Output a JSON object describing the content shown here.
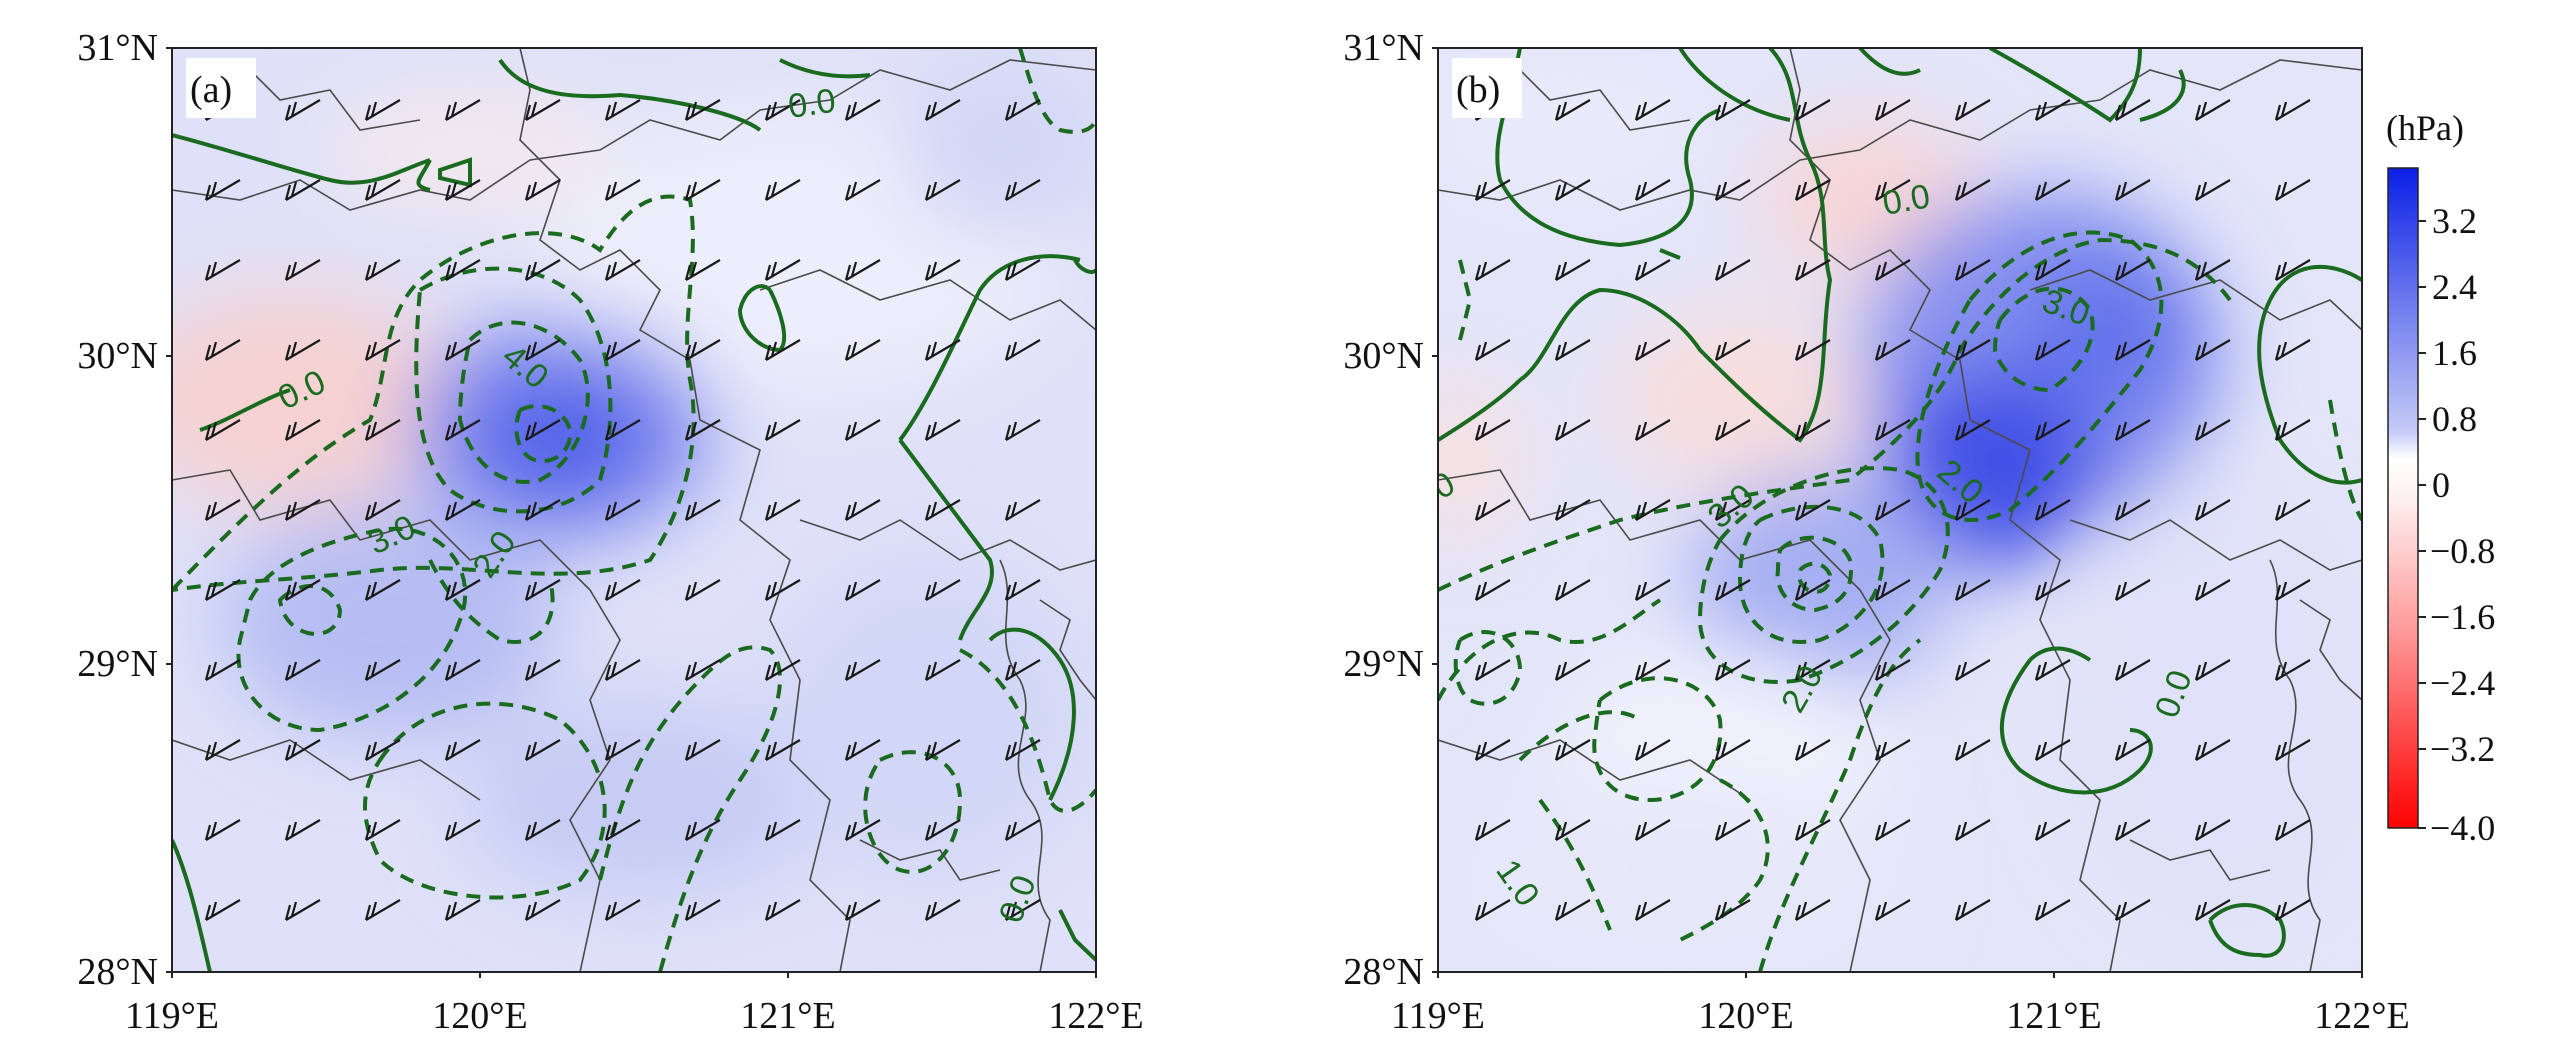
{
  "panels": [
    {
      "label": "(a)",
      "x_ticks": [
        "119°E",
        "120°E",
        "121°E",
        "122°E"
      ],
      "y_ticks": [
        "31°N",
        "30°N",
        "29°N",
        "28°N"
      ],
      "contour_labels": [
        "0.0",
        "0.0",
        "0.0",
        "3.0",
        "2.0",
        "4.0"
      ]
    },
    {
      "label": "(b)",
      "x_ticks": [
        "119°E",
        "120°E",
        "121°E",
        "122°E"
      ],
      "y_ticks": [
        "31°N",
        "30°N",
        "29°N",
        "28°N"
      ],
      "contour_labels": [
        "0.0",
        "3.0",
        "2.0",
        "3.0",
        "2.0",
        "1.0",
        "0",
        "0.0"
      ]
    }
  ],
  "colorbar": {
    "unit": "(hPa)",
    "ticks": [
      "3.2",
      "2.4",
      "1.6",
      "0.8",
      "0",
      "−0.8",
      "−1.6",
      "−2.4",
      "−3.2",
      "−4.0"
    ],
    "colors": {
      "max": "#0a1fe8",
      "zero": "#ffffff",
      "min": "#ff0000"
    }
  },
  "colors": {
    "contour": "#1a6b1f",
    "barb": "#1a1a1a",
    "boundary": "#4a4a4a"
  }
}
